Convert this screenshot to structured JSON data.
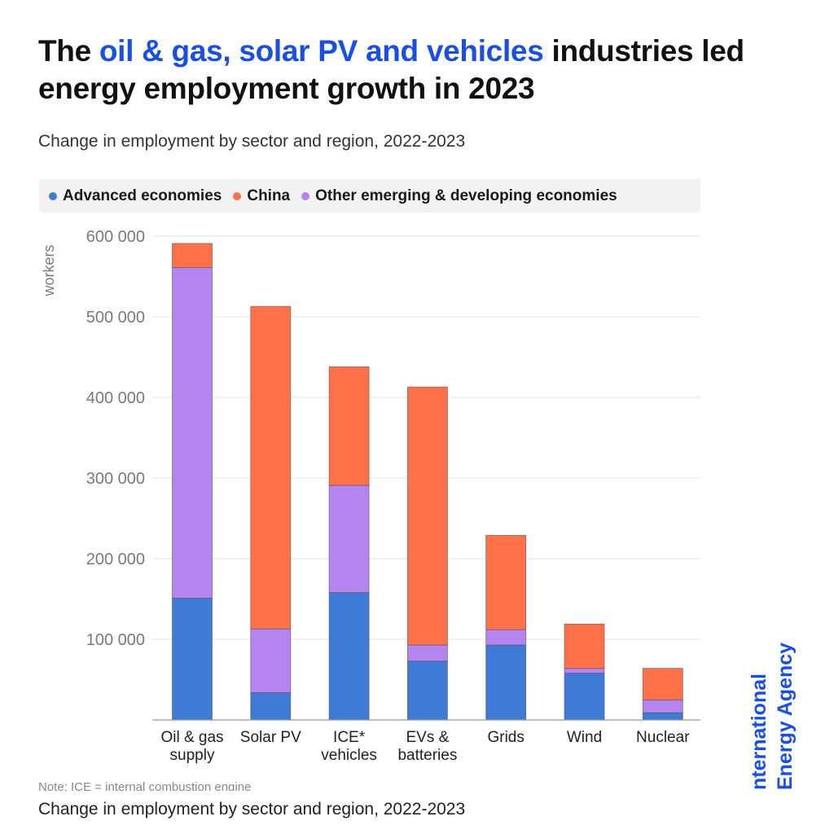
{
  "header": {
    "title_prefix": "The ",
    "title_highlight": "oil & gas, solar PV and vehicles",
    "title_suffix": " industries led energy employment growth in 2023",
    "subtitle": "Change in employment by sector and region, 2022-2023"
  },
  "legend": [
    {
      "label": "Advanced economies",
      "color": "#3f7bd6"
    },
    {
      "label": "China",
      "color": "#ff7148"
    },
    {
      "label": "Other emerging & developing economies",
      "color": "#b485ee"
    }
  ],
  "footer": {
    "note": "Note: ICE = internal combustion engine",
    "caption": "Change in employment by sector and region, 2022-2023"
  },
  "logo": {
    "line1": "nternational",
    "line2": "Energy Agency",
    "color": "#1a4fe0"
  },
  "chart_data": {
    "type": "bar",
    "stacked": true,
    "title": "Change in employment by sector and region, 2022-2023",
    "xlabel": "",
    "ylabel": "workers",
    "ylim": [
      0,
      600000
    ],
    "yticks": [
      100000,
      200000,
      300000,
      400000,
      500000,
      600000
    ],
    "ytick_labels": [
      "100 000",
      "200 000",
      "300 000",
      "400 000",
      "500 000",
      "600 000"
    ],
    "grid": true,
    "legend_position": "top",
    "categories": [
      [
        "Oil & gas",
        "supply"
      ],
      [
        "Solar PV"
      ],
      [
        "ICE*",
        "vehicles"
      ],
      [
        "EVs &",
        "batteries"
      ],
      [
        "Grids"
      ],
      [
        "Wind"
      ],
      [
        "Nuclear"
      ]
    ],
    "series": [
      {
        "name": "Advanced economies",
        "color": "#3f7bd6",
        "values": [
          151000,
          34000,
          158000,
          73000,
          93000,
          58000,
          9000
        ]
      },
      {
        "name": "Other emerging & developing economies",
        "color": "#b485ee",
        "values": [
          410000,
          79000,
          133000,
          20000,
          19000,
          6000,
          16000
        ]
      },
      {
        "name": "China",
        "color": "#ff7148",
        "values": [
          30000,
          400000,
          147000,
          320000,
          117000,
          55000,
          39000
        ]
      }
    ]
  }
}
